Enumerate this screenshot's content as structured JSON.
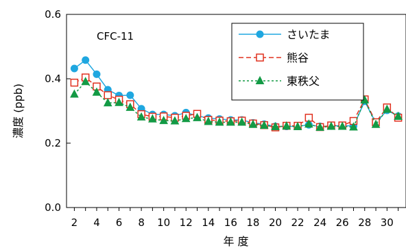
{
  "chart_data": {
    "type": "line",
    "title": "",
    "annotation": "CFC-11",
    "xlabel": "年 度",
    "ylabel": "濃度 (ppb)",
    "ylim": [
      0,
      0.6
    ],
    "yticks": [
      "0.0",
      "0.2",
      "0.4",
      "0.6"
    ],
    "xlim": [
      1.3,
      31.7
    ],
    "xticks": [
      "2",
      "4",
      "6",
      "8",
      "10",
      "12",
      "14",
      "16",
      "18",
      "20",
      "22",
      "24",
      "26",
      "28",
      "30"
    ],
    "grid": false,
    "legend_position": "top-right",
    "x": [
      2,
      3,
      4,
      5,
      6,
      7,
      8,
      9,
      10,
      11,
      12,
      13,
      14,
      15,
      16,
      17,
      18,
      19,
      20,
      21,
      22,
      23,
      24,
      25,
      26,
      27,
      28,
      29,
      30,
      31
    ],
    "series": [
      {
        "name": "さいたま",
        "color": "#1fa7e0",
        "line_style": "solid",
        "marker": "circle",
        "values": [
          0.432,
          0.458,
          0.414,
          0.366,
          0.348,
          0.349,
          0.307,
          0.289,
          0.289,
          0.285,
          0.295,
          0.285,
          0.278,
          0.275,
          0.272,
          0.272,
          0.263,
          0.259,
          0.252,
          0.252,
          0.252,
          0.257,
          0.252,
          0.253,
          0.255,
          0.253,
          0.33,
          0.263,
          0.302,
          0.284
        ]
      },
      {
        "name": "熊谷",
        "color": "#e0301e",
        "line_style": "dashed",
        "marker": "square-open",
        "values": [
          0.388,
          0.404,
          0.376,
          0.349,
          0.335,
          0.321,
          0.29,
          0.282,
          0.283,
          0.279,
          0.285,
          0.291,
          0.272,
          0.27,
          0.268,
          0.27,
          0.261,
          0.256,
          0.249,
          0.254,
          0.254,
          0.279,
          0.25,
          0.255,
          0.255,
          0.269,
          0.336,
          0.265,
          0.311,
          0.279
        ]
      },
      {
        "name": "東秩父",
        "color": "#139a45",
        "line_style": "dotted",
        "marker": "triangle",
        "values": [
          0.352,
          0.391,
          0.358,
          0.325,
          0.326,
          0.311,
          0.281,
          0.275,
          0.27,
          0.269,
          0.276,
          0.279,
          0.267,
          0.265,
          0.265,
          0.265,
          0.258,
          0.255,
          0.251,
          0.253,
          0.251,
          0.259,
          0.249,
          0.252,
          0.252,
          0.25,
          0.334,
          0.258,
          0.305,
          0.283
        ]
      }
    ]
  }
}
